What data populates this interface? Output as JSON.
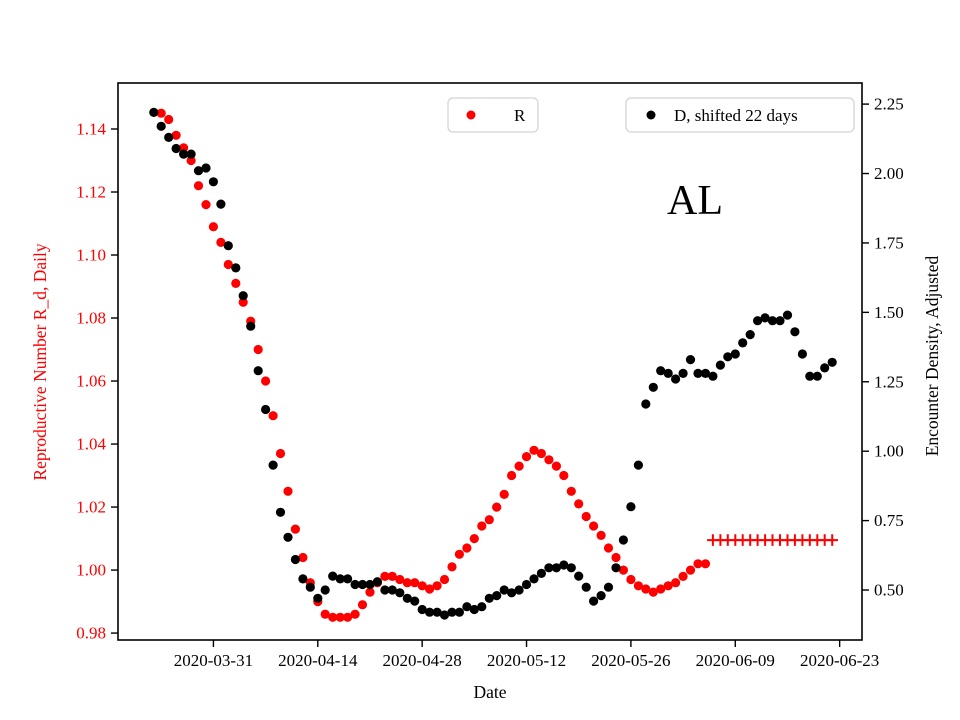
{
  "chart_data": {
    "type": "scatter",
    "annotation": "AL",
    "x_axis": {
      "label": "Date",
      "tick_dates": [
        "2020-03-31",
        "2020-04-14",
        "2020-04-28",
        "2020-05-12",
        "2020-05-26",
        "2020-06-09",
        "2020-06-23"
      ],
      "range_dates": [
        "2020-03-18",
        "2020-06-25"
      ]
    },
    "y_left": {
      "label": "Reproductive Number R_d, Daily",
      "color": "#ff0000",
      "ticks": [
        0.98,
        1.0,
        1.02,
        1.04,
        1.06,
        1.08,
        1.1,
        1.12,
        1.14
      ],
      "range": [
        0.9778,
        1.1546
      ]
    },
    "y_right": {
      "label": "Encounter Density, Adjusted",
      "color": "#000000",
      "ticks": [
        0.5,
        0.75,
        1.0,
        1.25,
        1.5,
        1.75,
        2.0,
        2.25
      ],
      "range": [
        0.32,
        2.326
      ]
    },
    "legend": [
      {
        "label": "R",
        "color": "#ff0000",
        "marker": "circle"
      },
      {
        "label": "D, shifted 22 days",
        "color": "#000000",
        "marker": "circle"
      }
    ],
    "series": [
      {
        "name": "R",
        "axis": "left",
        "marker": "circle",
        "color": "#ff0000",
        "start_date": "2020-03-24",
        "values": [
          1.145,
          1.143,
          1.138,
          1.134,
          1.13,
          1.122,
          1.116,
          1.109,
          1.104,
          1.097,
          1.091,
          1.085,
          1.079,
          1.07,
          1.06,
          1.049,
          1.037,
          1.025,
          1.013,
          1.004,
          0.996,
          0.99,
          0.986,
          0.985,
          0.985,
          0.985,
          0.986,
          0.989,
          0.993,
          0.996,
          0.998,
          0.998,
          0.997,
          0.996,
          0.996,
          0.995,
          0.994,
          0.995,
          0.997,
          1.001,
          1.005,
          1.007,
          1.01,
          1.014,
          1.016,
          1.02,
          1.024,
          1.03,
          1.033,
          1.036,
          1.038,
          1.037,
          1.035,
          1.033,
          1.03,
          1.025,
          1.021,
          1.017,
          1.014,
          1.011,
          1.007,
          1.004,
          1.0,
          0.997,
          0.995,
          0.994,
          0.993,
          0.994,
          0.995,
          0.996,
          0.998,
          1.0,
          1.002,
          1.002
        ]
      },
      {
        "name": "D, shifted 22 days",
        "axis": "right",
        "marker": "circle",
        "color": "#000000",
        "start_date": "2020-03-23",
        "values": [
          2.22,
          2.17,
          2.13,
          2.09,
          2.07,
          2.07,
          2.01,
          2.02,
          1.97,
          1.89,
          1.74,
          1.66,
          1.56,
          1.45,
          1.29,
          1.15,
          0.95,
          0.78,
          0.69,
          0.61,
          0.54,
          0.51,
          0.47,
          0.5,
          0.55,
          0.54,
          0.54,
          0.52,
          0.52,
          0.52,
          0.53,
          0.5,
          0.5,
          0.49,
          0.47,
          0.46,
          0.43,
          0.42,
          0.42,
          0.41,
          0.42,
          0.42,
          0.44,
          0.43,
          0.44,
          0.47,
          0.48,
          0.5,
          0.49,
          0.5,
          0.52,
          0.54,
          0.56,
          0.58,
          0.58,
          0.59,
          0.58,
          0.55,
          0.51,
          0.46,
          0.48,
          0.51,
          0.58,
          0.68,
          0.8,
          0.95,
          1.17,
          1.23,
          1.29,
          1.28,
          1.26,
          1.28,
          1.33,
          1.28,
          1.28,
          1.27,
          1.31,
          1.34,
          1.35,
          1.39,
          1.42,
          1.47,
          1.48,
          1.47,
          1.47,
          1.49,
          1.43,
          1.35,
          1.27,
          1.27,
          1.3,
          1.32
        ]
      },
      {
        "name": "R forecast",
        "axis": "left",
        "marker": "plus",
        "color": "#ff0000",
        "start_date": "2020-06-06",
        "values": [
          1.0095,
          1.0095,
          1.0095,
          1.0095,
          1.0095,
          1.0095,
          1.0095,
          1.0095,
          1.0095,
          1.0095,
          1.0095,
          1.0095,
          1.0095,
          1.0095,
          1.0095,
          1.0095,
          1.0095
        ]
      }
    ]
  }
}
